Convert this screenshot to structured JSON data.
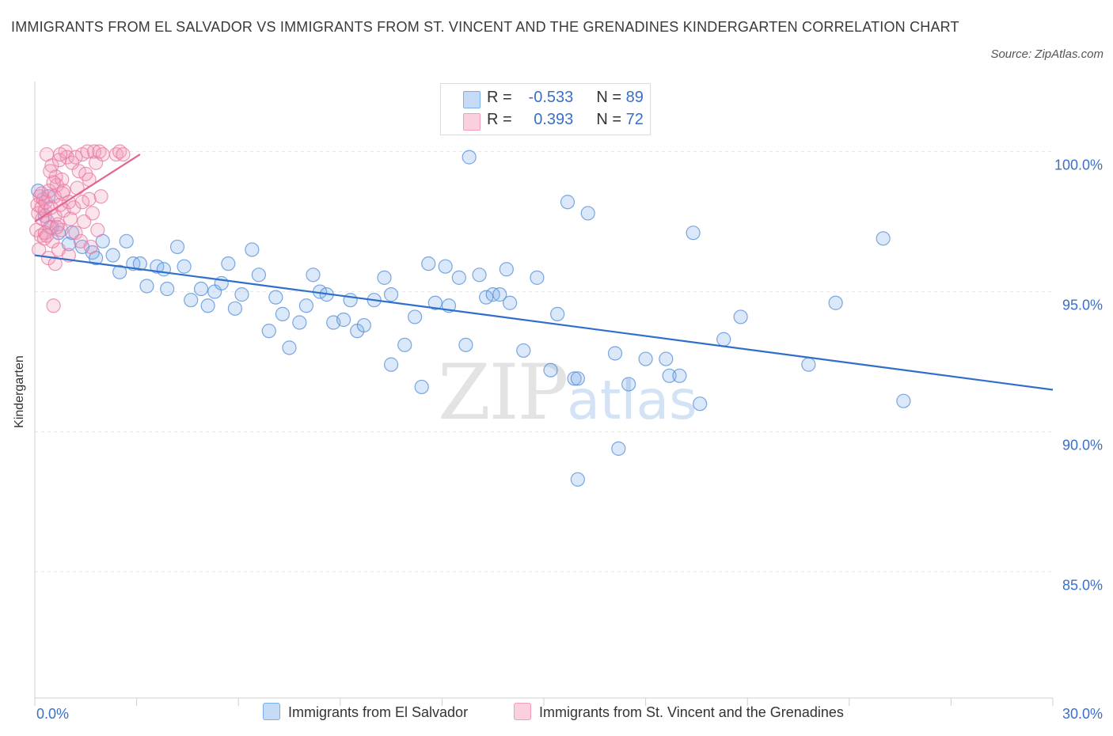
{
  "title": "IMMIGRANTS FROM EL SALVADOR VS IMMIGRANTS FROM ST. VINCENT AND THE GRENADINES KINDERGARTEN CORRELATION CHART",
  "source": "Source: ZipAtlas.com",
  "watermark": {
    "zip": "ZIP",
    "atlas": "atlas"
  },
  "colors": {
    "blue": "#7aaee8",
    "blue_line": "#2f6fcb",
    "pink": "#f29bbb",
    "pink_line": "#e3668f",
    "axis_text": "#3a6fc9"
  },
  "legend": {
    "row1": {
      "r_label": "R =",
      "r_value": "-0.533",
      "n_label": "N =",
      "n_value": "89"
    },
    "row2": {
      "r_label": "R =",
      "r_value": "0.393",
      "n_label": "N =",
      "n_value": "72"
    }
  },
  "bottom_legend": {
    "series1": "Immigrants from El Salvador",
    "series2": "Immigrants from St. Vincent and the Grenadines"
  },
  "chart_data": {
    "type": "scatter",
    "ylabel": "Kindergarten",
    "xlim": [
      0,
      30
    ],
    "ylim": [
      80.5,
      102.5
    ],
    "x_tick_labels": [
      "0.0%",
      "30.0%"
    ],
    "y_ticks": [
      85,
      90,
      95,
      100
    ],
    "y_tick_labels": [
      "85.0%",
      "90.0%",
      "95.0%",
      "100.0%"
    ],
    "grid": true,
    "series": [
      {
        "name": "Immigrants from El Salvador",
        "color": "#7aaee8",
        "trend": {
          "x": [
            0,
            30
          ],
          "y": [
            96.3,
            91.5
          ]
        },
        "points": [
          [
            0.1,
            98.6
          ],
          [
            0.3,
            97.7
          ],
          [
            0.4,
            98.4
          ],
          [
            0.5,
            97.3
          ],
          [
            0.7,
            97.1
          ],
          [
            1.0,
            96.7
          ],
          [
            1.1,
            97.1
          ],
          [
            1.4,
            96.6
          ],
          [
            1.7,
            96.4
          ],
          [
            1.8,
            96.2
          ],
          [
            2.0,
            96.8
          ],
          [
            2.3,
            96.3
          ],
          [
            2.5,
            95.7
          ],
          [
            2.7,
            96.8
          ],
          [
            2.9,
            96.0
          ],
          [
            3.1,
            96.0
          ],
          [
            3.3,
            95.2
          ],
          [
            3.6,
            95.9
          ],
          [
            3.8,
            95.8
          ],
          [
            3.9,
            95.1
          ],
          [
            4.2,
            96.6
          ],
          [
            4.4,
            95.9
          ],
          [
            4.6,
            94.7
          ],
          [
            4.9,
            95.1
          ],
          [
            5.1,
            94.5
          ],
          [
            5.3,
            95.0
          ],
          [
            5.5,
            95.3
          ],
          [
            5.7,
            96.0
          ],
          [
            5.9,
            94.4
          ],
          [
            6.1,
            94.9
          ],
          [
            6.4,
            96.5
          ],
          [
            6.6,
            95.6
          ],
          [
            6.9,
            93.6
          ],
          [
            7.1,
            94.8
          ],
          [
            7.3,
            94.2
          ],
          [
            7.5,
            93.0
          ],
          [
            7.8,
            93.9
          ],
          [
            8.0,
            94.5
          ],
          [
            8.2,
            95.6
          ],
          [
            8.4,
            95.0
          ],
          [
            8.6,
            94.9
          ],
          [
            8.8,
            93.9
          ],
          [
            9.1,
            94.0
          ],
          [
            9.3,
            94.7
          ],
          [
            9.5,
            93.6
          ],
          [
            9.7,
            93.8
          ],
          [
            10.0,
            94.7
          ],
          [
            10.3,
            95.5
          ],
          [
            10.5,
            94.9
          ],
          [
            10.5,
            92.4
          ],
          [
            10.9,
            93.1
          ],
          [
            11.2,
            94.1
          ],
          [
            11.4,
            91.6
          ],
          [
            11.6,
            96.0
          ],
          [
            11.8,
            94.6
          ],
          [
            12.1,
            95.9
          ],
          [
            12.2,
            94.5
          ],
          [
            12.5,
            95.5
          ],
          [
            12.7,
            93.1
          ],
          [
            12.8,
            99.8
          ],
          [
            13.1,
            95.6
          ],
          [
            13.3,
            94.8
          ],
          [
            13.5,
            94.9
          ],
          [
            13.7,
            94.9
          ],
          [
            13.9,
            95.8
          ],
          [
            14.0,
            94.6
          ],
          [
            14.4,
            92.9
          ],
          [
            14.8,
            95.5
          ],
          [
            15.2,
            92.2
          ],
          [
            15.4,
            94.2
          ],
          [
            15.7,
            98.2
          ],
          [
            15.9,
            91.9
          ],
          [
            16.0,
            91.9
          ],
          [
            16.0,
            88.3
          ],
          [
            16.3,
            97.8
          ],
          [
            17.1,
            92.8
          ],
          [
            17.2,
            89.4
          ],
          [
            17.5,
            91.7
          ],
          [
            18.0,
            92.6
          ],
          [
            18.6,
            92.6
          ],
          [
            18.7,
            92.0
          ],
          [
            19.0,
            92.0
          ],
          [
            19.4,
            97.1
          ],
          [
            19.6,
            91.0
          ],
          [
            20.3,
            93.3
          ],
          [
            20.8,
            94.1
          ],
          [
            22.8,
            92.4
          ],
          [
            23.6,
            94.6
          ],
          [
            25.0,
            96.9
          ],
          [
            25.6,
            91.1
          ]
        ]
      },
      {
        "name": "Immigrants from St. Vincent and the Grenadines",
        "color": "#f29bbb",
        "trend": {
          "x": [
            0,
            3.1
          ],
          "y": [
            97.5,
            99.9
          ]
        },
        "points": [
          [
            0.05,
            97.2
          ],
          [
            0.08,
            98.1
          ],
          [
            0.1,
            97.8
          ],
          [
            0.12,
            96.5
          ],
          [
            0.15,
            98.4
          ],
          [
            0.18,
            97.0
          ],
          [
            0.2,
            98.0
          ],
          [
            0.22,
            97.6
          ],
          [
            0.25,
            98.3
          ],
          [
            0.28,
            96.9
          ],
          [
            0.3,
            97.9
          ],
          [
            0.32,
            98.2
          ],
          [
            0.35,
            99.9
          ],
          [
            0.38,
            97.5
          ],
          [
            0.4,
            96.2
          ],
          [
            0.42,
            98.6
          ],
          [
            0.45,
            97.3
          ],
          [
            0.48,
            98.0
          ],
          [
            0.5,
            99.5
          ],
          [
            0.52,
            96.8
          ],
          [
            0.55,
            94.5
          ],
          [
            0.58,
            98.4
          ],
          [
            0.6,
            97.7
          ],
          [
            0.62,
            99.1
          ],
          [
            0.65,
            98.8
          ],
          [
            0.68,
            97.4
          ],
          [
            0.7,
            96.5
          ],
          [
            0.72,
            99.7
          ],
          [
            0.75,
            98.1
          ],
          [
            0.78,
            97.2
          ],
          [
            0.8,
            99.0
          ],
          [
            0.82,
            98.5
          ],
          [
            0.85,
            97.9
          ],
          [
            0.9,
            100.0
          ],
          [
            0.95,
            99.8
          ],
          [
            1.0,
            98.2
          ],
          [
            1.05,
            97.6
          ],
          [
            1.1,
            99.6
          ],
          [
            1.15,
            98.0
          ],
          [
            1.2,
            97.1
          ],
          [
            1.25,
            98.7
          ],
          [
            1.3,
            99.3
          ],
          [
            1.35,
            96.8
          ],
          [
            1.4,
            99.9
          ],
          [
            1.45,
            97.5
          ],
          [
            1.5,
            99.2
          ],
          [
            1.55,
            100.0
          ],
          [
            1.6,
            98.3
          ],
          [
            1.65,
            96.6
          ],
          [
            1.7,
            97.8
          ],
          [
            1.75,
            100.0
          ],
          [
            1.8,
            99.6
          ],
          [
            1.85,
            97.2
          ],
          [
            1.9,
            100.0
          ],
          [
            1.95,
            98.4
          ],
          [
            2.0,
            99.9
          ],
          [
            2.4,
            99.9
          ],
          [
            2.5,
            100.0
          ],
          [
            2.6,
            99.9
          ],
          [
            0.6,
            96.0
          ],
          [
            0.3,
            97.1
          ],
          [
            0.45,
            99.3
          ],
          [
            0.2,
            98.5
          ],
          [
            0.35,
            97.0
          ],
          [
            0.55,
            98.9
          ],
          [
            0.65,
            97.3
          ],
          [
            0.75,
            99.9
          ],
          [
            0.85,
            98.6
          ],
          [
            1.0,
            96.3
          ],
          [
            1.2,
            99.8
          ],
          [
            1.4,
            98.2
          ],
          [
            1.6,
            99.0
          ]
        ]
      }
    ]
  }
}
